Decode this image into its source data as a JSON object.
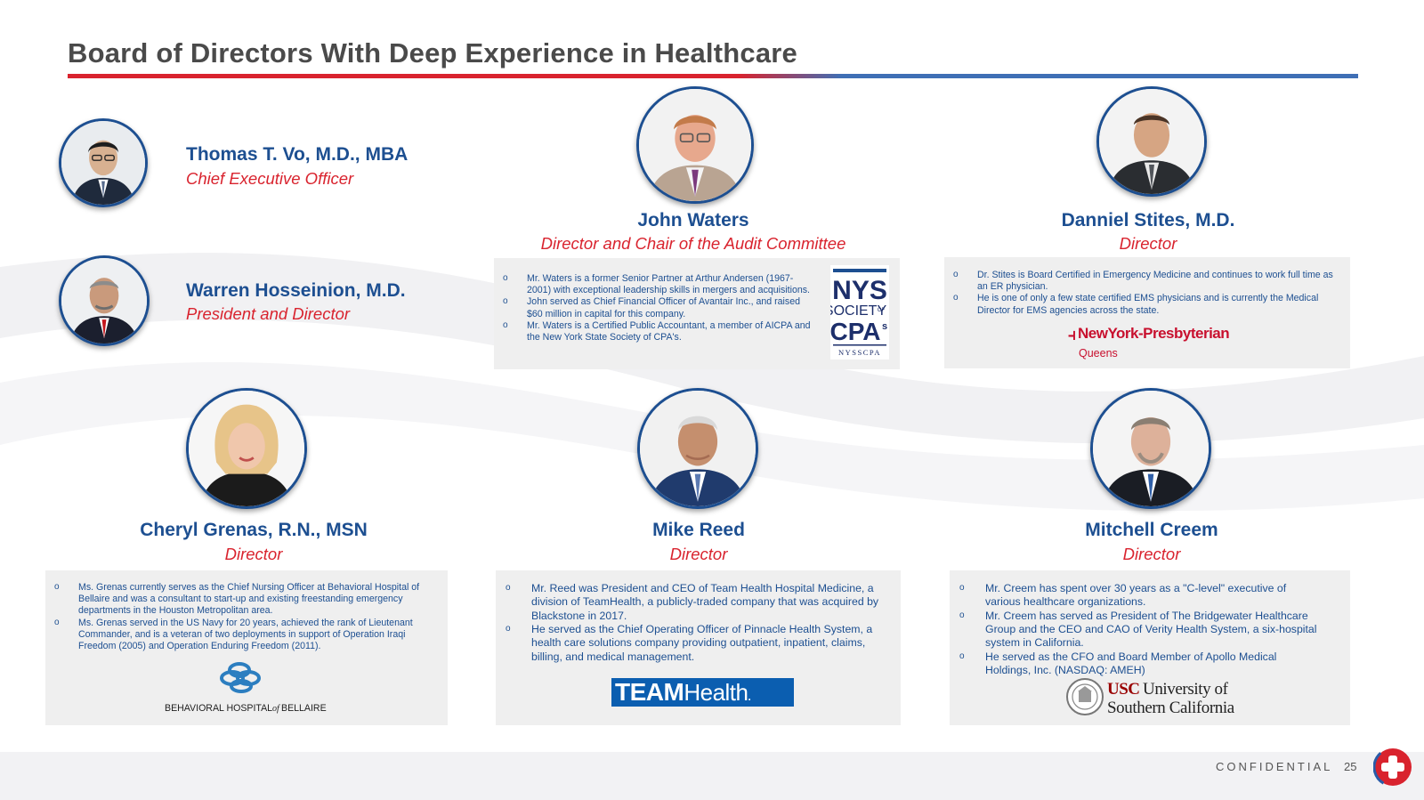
{
  "page": {
    "title": "Board of Directors With Deep Experience in Healthcare",
    "footer": {
      "confidential": "CONFIDENTIAL",
      "page_number": "25"
    }
  },
  "colors": {
    "navy": "#1d4f91",
    "red": "#d9232e",
    "card": "#efefef"
  },
  "executives": [
    {
      "name": "Thomas T. Vo, M.D., MBA",
      "role": "Chief Executive Officer"
    },
    {
      "name": "Warren Hosseinion, M.D.",
      "role": "President and Director"
    }
  ],
  "directors": [
    {
      "name": "John Waters",
      "role": "Director and Chair of the Audit Committee",
      "bullets": [
        "Mr. Waters is a former Senior Partner at Arthur Andersen (1967-2001) with exceptional leadership skills in mergers and acquisitions.",
        "John served as Chief Financial Officer of Avantair Inc., and raised $60 million in capital for this company.",
        "Mr. Waters is a Certified Public Accountant, a member of AICPA and the New York State Society of CPA's."
      ],
      "logo": {
        "icon": "nysscpa-logo",
        "lines": [
          "NYS",
          "SOCIETY",
          "OF",
          "CPA",
          "s",
          "NYSSCPA"
        ]
      }
    },
    {
      "name": "Danniel Stites, M.D.",
      "role": "Director",
      "bullets": [
        "Dr. Stites is Board Certified in Emergency Medicine and continues to work full time as an ER physician.",
        "He is one of only a few state certified EMS physicians and is currently the Medical Director for EMS agencies across the state."
      ],
      "logo": {
        "icon": "newyork-presbyterian-logo",
        "lines": [
          "NewYork-Presbyterian",
          "Queens"
        ]
      }
    },
    {
      "name": "Cheryl Grenas, R.N., MSN",
      "role": "Director",
      "bullets": [
        "Ms. Grenas currently serves as the Chief Nursing Officer at Behavioral Hospital of Bellaire and was a consultant to start-up and existing freestanding emergency departments in the Houston Metropolitan area.",
        "Ms. Grenas served in the US Navy for 20 years, achieved the rank of Lieutenant Commander, and is a veteran of two deployments in support of Operation Iraqi Freedom (2005) and Operation Enduring Freedom (2011)."
      ],
      "logo": {
        "icon": "behavioral-hospital-logo",
        "lines": [
          "BEHAVIORAL HOSPITAL",
          "of",
          "BELLAIRE"
        ]
      }
    },
    {
      "name": "Mike Reed",
      "role": "Director",
      "bullets": [
        "Mr. Reed was President and CEO of Team Health Hospital Medicine, a division of TeamHealth, a publicly-traded company that was acquired by Blackstone in 2017.",
        "He served as the Chief Operating Officer of Pinnacle Health System, a health care solutions company providing outpatient, inpatient, claims, billing, and medical management."
      ],
      "logo": {
        "icon": "teamhealth-logo",
        "lines": [
          "TEAM",
          "Health",
          "."
        ]
      }
    },
    {
      "name": "Mitchell Creem",
      "role": "Director",
      "bullets": [
        "Mr. Creem has spent over 30 years as a \"C-level\" executive of various healthcare organizations.",
        "Mr. Creem has served as President of The Bridgewater Healthcare Group and the CEO and CAO of Verity Health System, a six-hospital system in California.",
        "He served as the CFO and Board Member of Apollo Medical Holdings, Inc. (NASDAQ: AMEH)"
      ],
      "logo": {
        "icon": "usc-logo",
        "lines": [
          "USC",
          "University of",
          "Southern California"
        ]
      }
    }
  ]
}
